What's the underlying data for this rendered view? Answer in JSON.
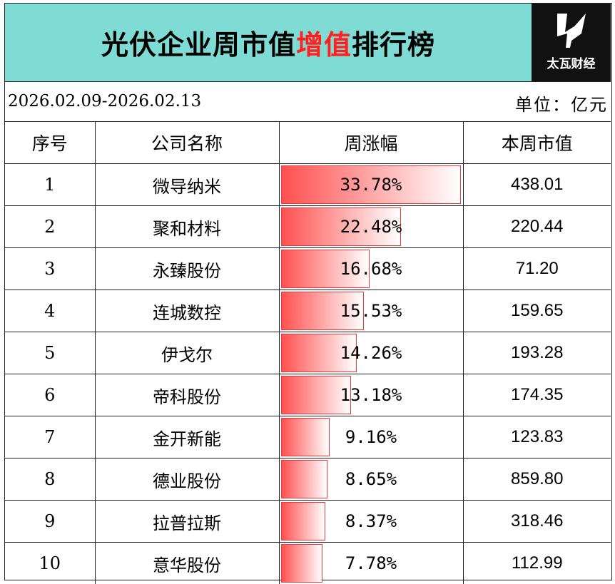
{
  "title": {
    "prefix": "光伏企业周市值",
    "highlight": "增值",
    "suffix": "排行榜",
    "highlight_color": "#ff1f1f"
  },
  "logo": {
    "text": "太瓦财经",
    "icon": "lightning-bolt-icon"
  },
  "date_range": "2026.02.09-2026.02.13",
  "unit": "单位：亿元",
  "colors": {
    "header_bg": "#7fdcd4",
    "bar_start": "#ff5050",
    "bar_border": "#e83a3a"
  },
  "headers": {
    "rank": "序号",
    "company": "公司名称",
    "change": "周涨幅",
    "market_cap": "本周市值"
  },
  "chart_data": {
    "type": "table",
    "bar_column": "周涨幅",
    "bar_max": 33.78,
    "rows": [
      {
        "rank": "1",
        "company": "微导纳米",
        "change": 33.78,
        "change_label": "33.78%",
        "market_cap": "438.01"
      },
      {
        "rank": "2",
        "company": "聚和材料",
        "change": 22.48,
        "change_label": "22.48%",
        "market_cap": "220.44"
      },
      {
        "rank": "3",
        "company": "永臻股份",
        "change": 16.68,
        "change_label": "16.68%",
        "market_cap": "71.20"
      },
      {
        "rank": "4",
        "company": "连城数控",
        "change": 15.53,
        "change_label": "15.53%",
        "market_cap": "159.65"
      },
      {
        "rank": "5",
        "company": "伊戈尔",
        "change": 14.26,
        "change_label": "14.26%",
        "market_cap": "193.28"
      },
      {
        "rank": "6",
        "company": "帝科股份",
        "change": 13.18,
        "change_label": "13.18%",
        "market_cap": "174.35"
      },
      {
        "rank": "7",
        "company": "金开新能",
        "change": 9.16,
        "change_label": "9.16%",
        "market_cap": "123.83"
      },
      {
        "rank": "8",
        "company": "德业股份",
        "change": 8.65,
        "change_label": "8.65%",
        "market_cap": "859.80"
      },
      {
        "rank": "9",
        "company": "拉普拉斯",
        "change": 8.37,
        "change_label": "8.37%",
        "market_cap": "318.46"
      },
      {
        "rank": "10",
        "company": "意华股份",
        "change": 7.78,
        "change_label": "7.78%",
        "market_cap": "112.99"
      }
    ]
  }
}
